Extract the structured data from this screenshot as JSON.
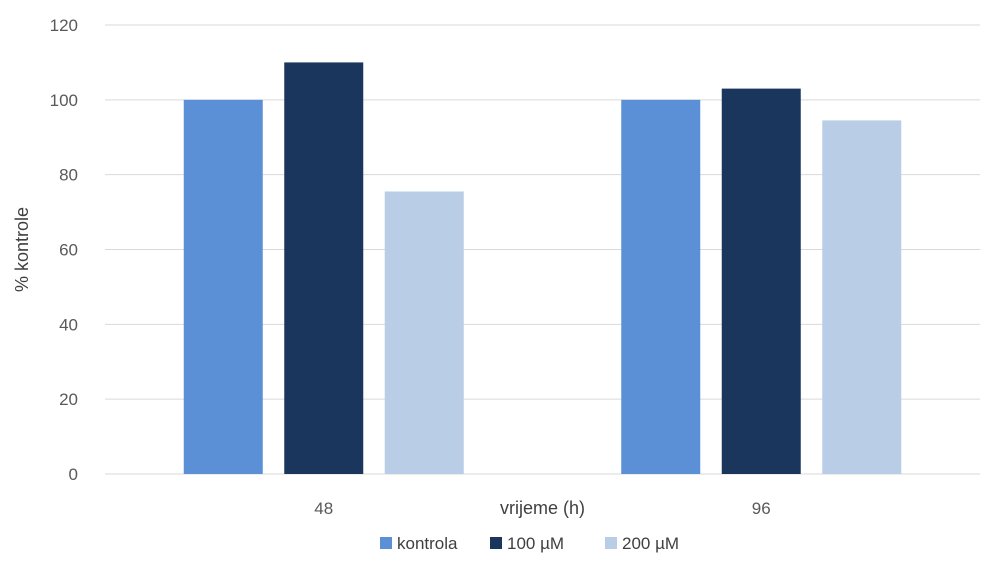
{
  "chart_data": {
    "type": "bar",
    "categories": [
      "48",
      "96"
    ],
    "series": [
      {
        "name": "kontrola",
        "color": "#5b8fd6",
        "values": [
          100,
          100
        ]
      },
      {
        "name": "100 µM",
        "color": "#1b365d",
        "values": [
          110,
          103
        ]
      },
      {
        "name": "200 µM",
        "color": "#b9cde6",
        "values": [
          75.5,
          94.5
        ]
      }
    ],
    "xlabel": "vrijeme (h)",
    "ylabel": "% kontrole",
    "ylim": [
      0,
      120
    ],
    "yticks": [
      0,
      20,
      40,
      60,
      80,
      100,
      120
    ],
    "grid": true,
    "grid_color": "#d9d9d9",
    "legend_position": "bottom"
  }
}
